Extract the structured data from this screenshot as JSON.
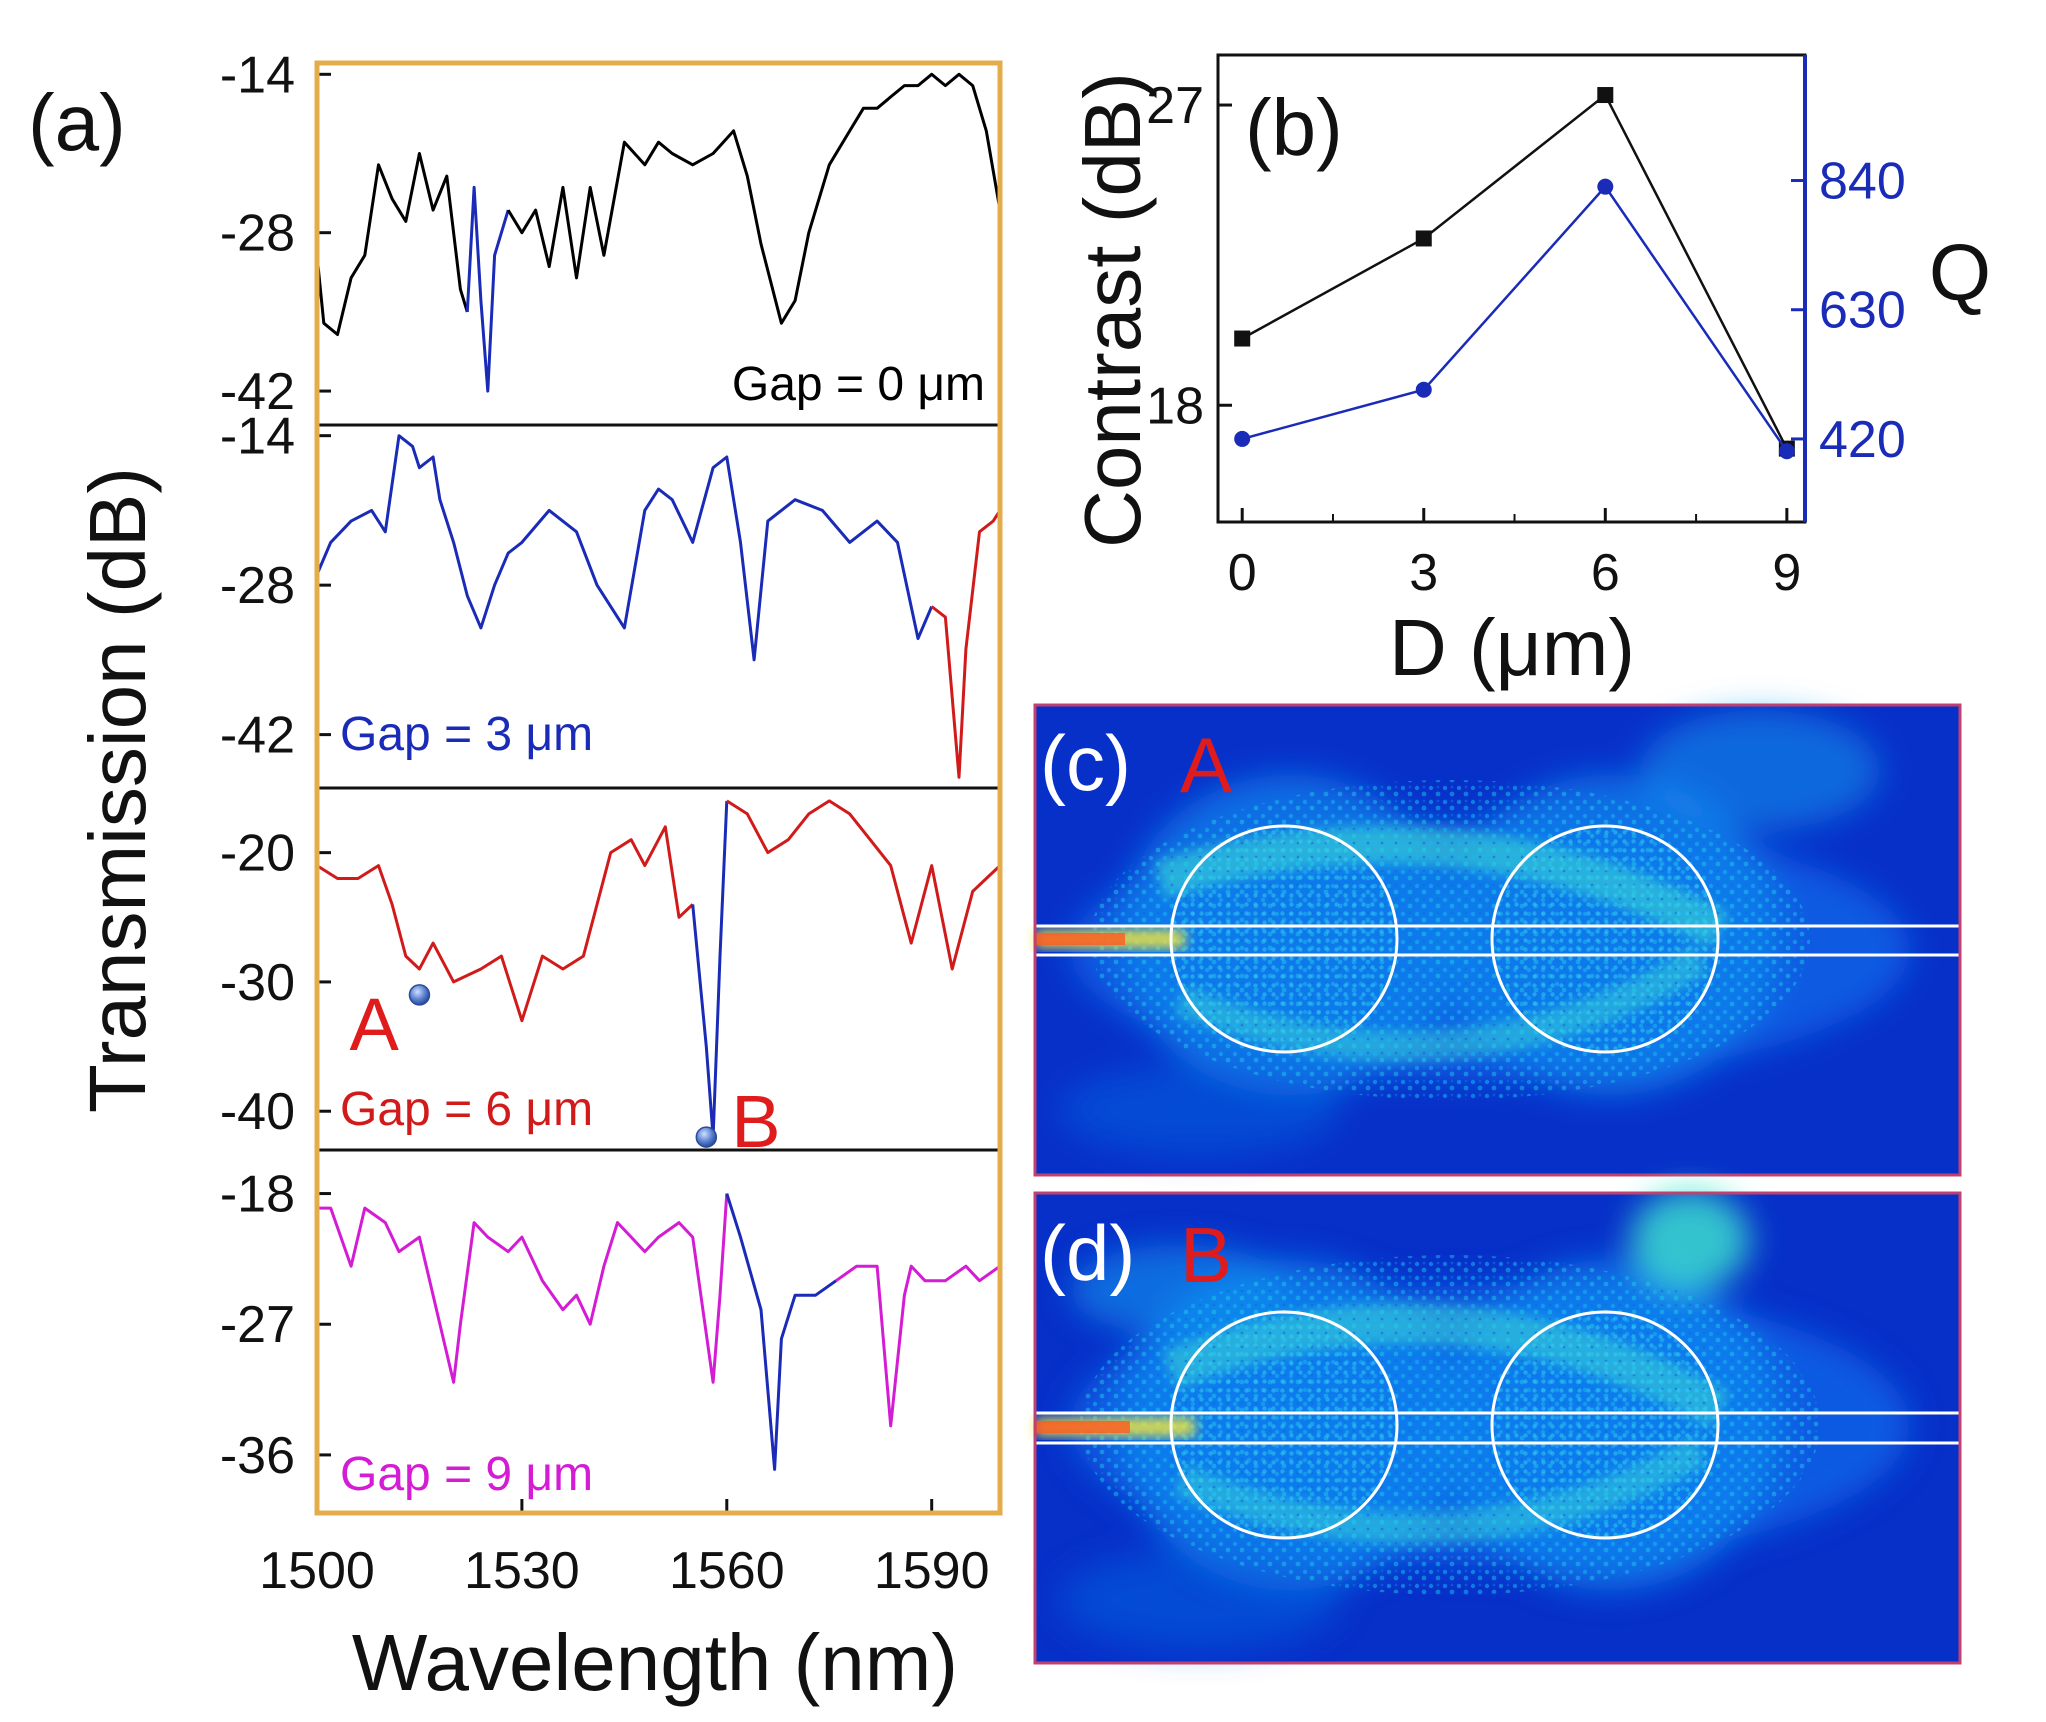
{
  "chart_data": [
    {
      "panel": "(a)",
      "type": "line",
      "xlabel": "Wavelength (nm)",
      "ylabel": "Transmission (dB)",
      "xlim": [
        1500,
        1600
      ],
      "xticks": [
        "1500",
        "1530",
        "1560",
        "1590"
      ],
      "xtick_values": [
        1500,
        1530,
        1560,
        1590
      ],
      "frame_color": "#e5ac4b",
      "subplots": [
        {
          "label": "Gap = 0 μm",
          "label_color": "#000000",
          "ylim": [
            -45,
            -13
          ],
          "yticks": [
            "-14",
            "-28",
            "-42"
          ],
          "ytick_values": [
            -14,
            -28,
            -42
          ],
          "segments": [
            {
              "color": "#000000",
              "x": [
                1500,
                1501,
                1503,
                1505,
                1507,
                1509,
                1511,
                1513,
                1515,
                1517,
                1519,
                1521,
                1522
              ],
              "y": [
                -30,
                -36,
                -37,
                -32,
                -30,
                -22,
                -25,
                -27,
                -21,
                -26,
                -23,
                -33,
                -35
              ]
            },
            {
              "color": "#1a2bb8",
              "x": [
                1522,
                1523,
                1524,
                1525,
                1526,
                1528
              ],
              "y": [
                -35,
                -24,
                -34,
                -42,
                -30,
                -26
              ]
            },
            {
              "color": "#000000",
              "x": [
                1528,
                1530,
                1532,
                1534,
                1536,
                1538,
                1540,
                1542,
                1545,
                1548,
                1550,
                1552,
                1555,
                1558,
                1561,
                1563,
                1565,
                1568,
                1570,
                1572,
                1575,
                1578,
                1580,
                1582,
                1584,
                1586,
                1588,
                1590,
                1592,
                1594,
                1596,
                1598,
                1600
              ],
              "y": [
                -26,
                -28,
                -26,
                -31,
                -24,
                -32,
                -24,
                -30,
                -20,
                -22,
                -20,
                -21,
                -22,
                -21,
                -19,
                -23,
                -29,
                -36,
                -34,
                -28,
                -22,
                -19,
                -17,
                -17,
                -16,
                -15,
                -15,
                -14,
                -15,
                -14,
                -15,
                -19,
                -26
              ]
            }
          ]
        },
        {
          "label": "Gap = 3 μm",
          "label_color": "#1a2bb8",
          "ylim": [
            -47,
            -13
          ],
          "yticks": [
            "-14",
            "-28",
            "-42"
          ],
          "ytick_values": [
            -14,
            -28,
            -42
          ],
          "segments": [
            {
              "color": "#1a2bb8",
              "x": [
                1500,
                1502,
                1505,
                1508,
                1510,
                1512,
                1514,
                1515,
                1517,
                1518,
                1520,
                1522,
                1524,
                1526,
                1528,
                1530,
                1534,
                1538,
                1541,
                1545,
                1548,
                1550,
                1552,
                1555,
                1558,
                1560,
                1562,
                1564,
                1566,
                1570,
                1574,
                1578,
                1582,
                1585,
                1588,
                1590
              ],
              "y": [
                -27,
                -24,
                -22,
                -21,
                -23,
                -14,
                -15,
                -17,
                -16,
                -20,
                -24,
                -29,
                -32,
                -28,
                -25,
                -24,
                -21,
                -23,
                -28,
                -32,
                -21,
                -19,
                -20,
                -24,
                -17,
                -16,
                -24,
                -35,
                -22,
                -20,
                -21,
                -24,
                -22,
                -24,
                -33,
                -30
              ]
            },
            {
              "color": "#d11b1b",
              "x": [
                1590,
                1592,
                1594,
                1595,
                1597,
                1599,
                1600
              ],
              "y": [
                -30,
                -31,
                -46,
                -34,
                -23,
                -22,
                -21
              ]
            }
          ]
        },
        {
          "label": "Gap = 6 μm",
          "label_color": "#d11b1b",
          "ylim": [
            -43,
            -15
          ],
          "yticks": [
            "-20",
            "-30",
            "-40"
          ],
          "ytick_values": [
            -20,
            -30,
            -40
          ],
          "segments": [
            {
              "color": "#d11b1b",
              "x": [
                1500,
                1503,
                1506,
                1509,
                1511,
                1513,
                1515,
                1517,
                1520,
                1524,
                1527,
                1530,
                1533,
                1536,
                1539,
                1543,
                1546,
                1548,
                1551,
                1553,
                1555
              ],
              "y": [
                -21,
                -22,
                -22,
                -21,
                -24,
                -28,
                -29,
                -27,
                -30,
                -29,
                -28,
                -33,
                -28,
                -29,
                -28,
                -20,
                -19,
                -21,
                -18,
                -25,
                -24
              ]
            },
            {
              "color": "#1a2bb8",
              "x": [
                1555,
                1557,
                1558,
                1559,
                1560
              ],
              "y": [
                -24,
                -35,
                -42,
                -28,
                -16
              ]
            },
            {
              "color": "#d11b1b",
              "x": [
                1560,
                1563,
                1566,
                1569,
                1572,
                1575,
                1578,
                1581,
                1584,
                1587,
                1590,
                1593,
                1596,
                1598,
                1600
              ],
              "y": [
                -16,
                -17,
                -20,
                -19,
                -17,
                -16,
                -17,
                -19,
                -21,
                -27,
                -21,
                -29,
                -23,
                -22,
                -21
              ]
            }
          ],
          "markers": [
            {
              "label": "A",
              "x": 1515,
              "y": -31
            },
            {
              "label": "B",
              "x": 1557,
              "y": -42
            }
          ]
        },
        {
          "label": "Gap = 9 μm",
          "label_color": "#d41cd4",
          "ylim": [
            -40,
            -15
          ],
          "yticks": [
            "-18",
            "-27",
            "-36"
          ],
          "ytick_values": [
            -18,
            -27,
            -36
          ],
          "segments": [
            {
              "color": "#d41cd4",
              "x": [
                1500,
                1502,
                1505,
                1507,
                1510,
                1512,
                1515,
                1518,
                1520,
                1521,
                1523,
                1525,
                1528,
                1530,
                1533,
                1536,
                1538,
                1540,
                1542,
                1544,
                1546,
                1548,
                1550,
                1553,
                1555,
                1558,
                1559,
                1560
              ],
              "y": [
                -19,
                -19,
                -23,
                -19,
                -20,
                -22,
                -21,
                -27,
                -31,
                -27,
                -20,
                -21,
                -22,
                -21,
                -24,
                -26,
                -25,
                -27,
                -23,
                -20,
                -21,
                -22,
                -21,
                -20,
                -21,
                -31,
                -25,
                -18
              ]
            },
            {
              "color": "#1a2bb8",
              "x": [
                1560,
                1562,
                1565,
                1567,
                1568,
                1570,
                1573,
                1576
              ],
              "y": [
                -18,
                -21,
                -26,
                -37,
                -28,
                -25,
                -25,
                -24
              ]
            },
            {
              "color": "#d41cd4",
              "x": [
                1576,
                1579,
                1582,
                1584,
                1586,
                1587,
                1589,
                1592,
                1595,
                1597,
                1600
              ],
              "y": [
                -24,
                -23,
                -23,
                -34,
                -25,
                -23,
                -24,
                -24,
                -23,
                -24,
                -23
              ]
            }
          ]
        }
      ]
    },
    {
      "panel": "(b)",
      "type": "line",
      "xlabel": "D (μm)",
      "ylabel_left": "Contrast (dB)",
      "ylabel_right": "Q",
      "x": [
        0,
        3,
        6,
        9
      ],
      "xlim": [
        -0.4,
        9.3
      ],
      "xticks": [
        "0",
        "3",
        "6",
        "9"
      ],
      "ylim_left": [
        14.5,
        28.5
      ],
      "yticks_left": [
        "18",
        "27"
      ],
      "ylim_right": [
        285,
        1044
      ],
      "yticks_right": [
        "420",
        "630",
        "840"
      ],
      "series": [
        {
          "name": "Contrast",
          "axis": "left",
          "color": "#111111",
          "marker": "square",
          "values": [
            20,
            23,
            27.3,
            16.7
          ]
        },
        {
          "name": "Q",
          "axis": "right",
          "color": "#1a2bb8",
          "marker": "circle",
          "values": [
            420,
            500,
            830,
            400
          ]
        }
      ]
    },
    {
      "panel": "(c)",
      "type": "heatmap",
      "marker_label": "A",
      "description_label_color": "#e01b1b"
    },
    {
      "panel": "(d)",
      "type": "heatmap",
      "marker_label": "B",
      "description_label_color": "#e01b1b"
    }
  ]
}
